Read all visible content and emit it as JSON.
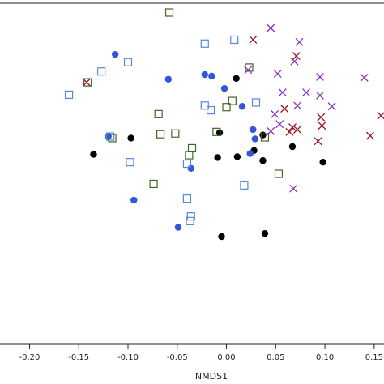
{
  "chart_data": {
    "type": "scatter",
    "title": "",
    "xlabel": "NMDS1",
    "ylabel": "",
    "xlim": [
      -0.23,
      0.16
    ],
    "ylim": [
      -0.24,
      0.2
    ],
    "xticks": [
      -0.2,
      -0.15,
      -0.1,
      -0.05,
      0.0,
      0.05,
      0.1,
      0.15
    ],
    "xtick_labels": [
      "-0.20",
      "-0.15",
      "-0.10",
      "-0.05",
      "0.00",
      "0.05",
      "0.10",
      "0.15"
    ],
    "grid": false,
    "legend": "none",
    "series": [
      {
        "marker": "circle-filled",
        "color": "#000000",
        "points": [
          [
            -0.135,
            0.005
          ],
          [
            -0.097,
            0.026
          ],
          [
            0.01,
            0.103
          ],
          [
            -0.007,
            0.033
          ],
          [
            0.037,
            0.03
          ],
          [
            -0.009,
            0.001
          ],
          [
            0.011,
            0.002
          ],
          [
            0.028,
            0.01
          ],
          [
            0.037,
            -0.003
          ],
          [
            0.067,
            0.015
          ],
          [
            0.098,
            -0.005
          ],
          [
            -0.005,
            -0.101
          ],
          [
            0.039,
            -0.097
          ]
        ]
      },
      {
        "marker": "circle-filled",
        "color": "#3355dd",
        "points": [
          [
            -0.113,
            0.134
          ],
          [
            -0.12,
            0.028
          ],
          [
            -0.059,
            0.102
          ],
          [
            -0.022,
            0.108
          ],
          [
            -0.015,
            0.106
          ],
          [
            -0.002,
            0.09
          ],
          [
            0.016,
            0.067
          ],
          [
            0.027,
            0.037
          ],
          [
            0.029,
            0.025
          ],
          [
            0.024,
            0.006
          ],
          [
            -0.036,
            -0.013
          ],
          [
            -0.094,
            -0.054
          ],
          [
            -0.049,
            -0.089
          ]
        ]
      },
      {
        "marker": "square-open",
        "color": "#5588dd",
        "points": [
          [
            -0.16,
            0.082
          ],
          [
            -0.127,
            0.112
          ],
          [
            -0.1,
            0.124
          ],
          [
            -0.022,
            0.148
          ],
          [
            0.008,
            0.153
          ],
          [
            -0.022,
            0.068
          ],
          [
            -0.016,
            0.062
          ],
          [
            0.03,
            0.072
          ],
          [
            -0.118,
            0.028
          ],
          [
            -0.098,
            -0.005
          ],
          [
            -0.04,
            -0.007
          ],
          [
            0.018,
            -0.035
          ],
          [
            -0.04,
            -0.052
          ],
          [
            -0.036,
            -0.075
          ],
          [
            -0.037,
            -0.081
          ]
        ]
      },
      {
        "marker": "square-open",
        "color": "#446622",
        "points": [
          [
            -0.058,
            0.188
          ],
          [
            0.023,
            0.117
          ],
          [
            -0.141,
            0.098
          ],
          [
            0.006,
            0.074
          ],
          [
            0.0,
            0.066
          ],
          [
            -0.069,
            0.057
          ],
          [
            -0.067,
            0.031
          ],
          [
            -0.052,
            0.032
          ],
          [
            -0.01,
            0.034
          ],
          [
            -0.116,
            0.026
          ],
          [
            0.039,
            0.027
          ],
          [
            -0.035,
            0.013
          ],
          [
            -0.038,
            0.004
          ],
          [
            0.053,
            -0.02
          ],
          [
            -0.074,
            -0.033
          ]
        ]
      },
      {
        "marker": "x",
        "color": "#8833bb",
        "points": [
          [
            0.045,
            0.168
          ],
          [
            0.074,
            0.15
          ],
          [
            0.069,
            0.125
          ],
          [
            0.022,
            0.114
          ],
          [
            0.052,
            0.109
          ],
          [
            0.095,
            0.105
          ],
          [
            0.14,
            0.104
          ],
          [
            0.057,
            0.085
          ],
          [
            0.081,
            0.085
          ],
          [
            0.095,
            0.081
          ],
          [
            0.107,
            0.067
          ],
          [
            0.072,
            0.068
          ],
          [
            0.049,
            0.057
          ],
          [
            0.054,
            0.044
          ],
          [
            0.045,
            0.035
          ],
          [
            0.068,
            -0.039
          ]
        ]
      },
      {
        "marker": "x",
        "color": "#991122",
        "points": [
          [
            0.027,
            0.153
          ],
          [
            0.071,
            0.132
          ],
          [
            -0.142,
            0.098
          ],
          [
            0.059,
            0.064
          ],
          [
            0.096,
            0.053
          ],
          [
            0.097,
            0.042
          ],
          [
            0.067,
            0.04
          ],
          [
            0.072,
            0.037
          ],
          [
            0.146,
            0.029
          ],
          [
            0.093,
            0.022
          ],
          [
            0.157,
            0.055
          ],
          [
            0.064,
            0.034
          ]
        ]
      }
    ]
  }
}
